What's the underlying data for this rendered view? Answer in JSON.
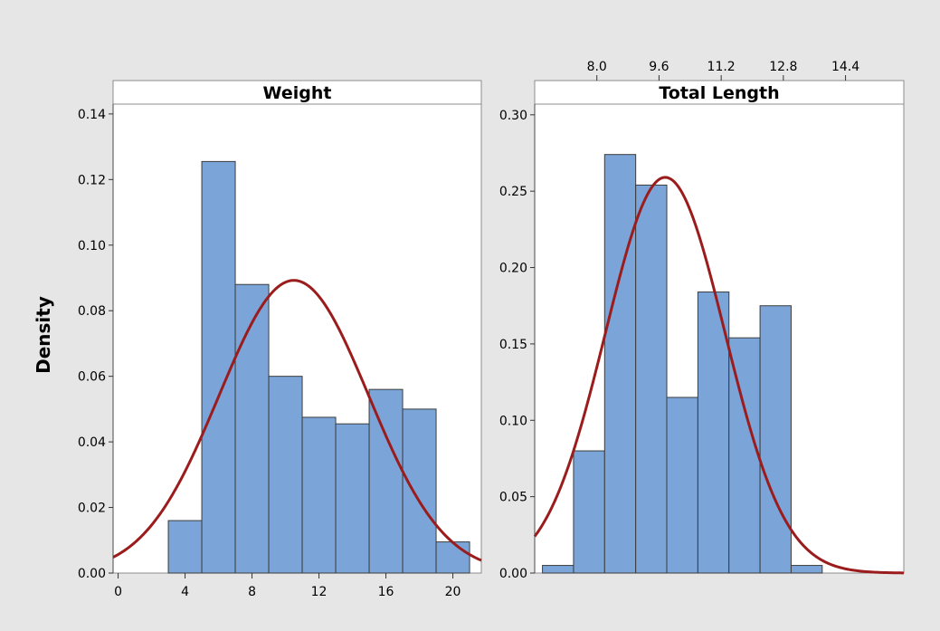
{
  "figure": {
    "ylabel": "Density",
    "background": "#e6e6e6",
    "panel_background": "#ffffff",
    "bar_color": "#7ba5d9",
    "bar_edge_color": "#3c3c3c",
    "curve_color": "#9b1c1c"
  },
  "chart_data": [
    {
      "type": "bar",
      "title": "Weight",
      "xlabel": "",
      "ylabel": "Density",
      "xlim": [
        -0.3,
        21.7
      ],
      "ylim": [
        0,
        0.143
      ],
      "x_ticks": [
        0,
        4,
        8,
        12,
        16,
        20
      ],
      "x_tick_labels": [
        "0",
        "4",
        "8",
        "12",
        "16",
        "20"
      ],
      "x_axis_position": "bottom",
      "y_ticks": [
        0.0,
        0.02,
        0.04,
        0.06,
        0.08,
        0.1,
        0.12,
        0.14
      ],
      "y_tick_labels": [
        "0.00",
        "0.02",
        "0.04",
        "0.06",
        "0.08",
        "0.10",
        "0.12",
        "0.14"
      ],
      "bins": [
        {
          "x0": 3,
          "x1": 5,
          "density": 0.016
        },
        {
          "x0": 5,
          "x1": 7,
          "density": 0.1255
        },
        {
          "x0": 7,
          "x1": 9,
          "density": 0.088
        },
        {
          "x0": 9,
          "x1": 11,
          "density": 0.06
        },
        {
          "x0": 11,
          "x1": 13,
          "density": 0.0475
        },
        {
          "x0": 13,
          "x1": 15,
          "density": 0.0455
        },
        {
          "x0": 15,
          "x1": 17,
          "density": 0.056
        },
        {
          "x0": 17,
          "x1": 19,
          "density": 0.05
        },
        {
          "x0": 19,
          "x1": 21,
          "density": 0.0095
        }
      ],
      "fit_curve": {
        "type": "normal",
        "mean": 10.5,
        "sd": 4.47
      }
    },
    {
      "type": "bar",
      "title": "Total Length",
      "xlabel": "",
      "ylabel": "Density",
      "xlim": [
        6.4,
        15.9
      ],
      "ylim": [
        0,
        0.307
      ],
      "x_ticks": [
        8.0,
        9.6,
        11.2,
        12.8,
        14.4
      ],
      "x_tick_labels": [
        "8.0",
        "9.6",
        "11.2",
        "12.8",
        "14.4"
      ],
      "x_axis_position": "top",
      "y_ticks": [
        0.0,
        0.05,
        0.1,
        0.15,
        0.2,
        0.25,
        0.3
      ],
      "y_tick_labels": [
        "0.00",
        "0.05",
        "0.10",
        "0.15",
        "0.20",
        "0.25",
        "0.30"
      ],
      "bins": [
        {
          "x0": 6.6,
          "x1": 7.4,
          "density": 0.005
        },
        {
          "x0": 7.4,
          "x1": 8.2,
          "density": 0.08
        },
        {
          "x0": 8.2,
          "x1": 9.0,
          "density": 0.274
        },
        {
          "x0": 9.0,
          "x1": 9.8,
          "density": 0.254
        },
        {
          "x0": 9.8,
          "x1": 10.6,
          "density": 0.115
        },
        {
          "x0": 10.6,
          "x1": 11.4,
          "density": 0.184
        },
        {
          "x0": 11.4,
          "x1": 12.2,
          "density": 0.154
        },
        {
          "x0": 12.2,
          "x1": 13.0,
          "density": 0.175
        },
        {
          "x0": 13.0,
          "x1": 13.8,
          "density": 0.005
        }
      ],
      "fit_curve": {
        "type": "normal",
        "mean": 9.76,
        "sd": 1.54
      }
    }
  ]
}
